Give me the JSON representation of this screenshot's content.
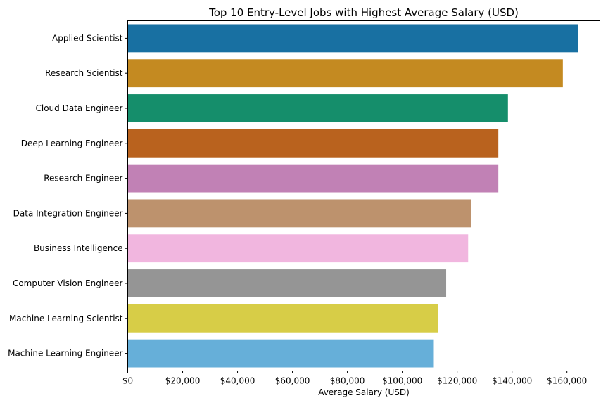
{
  "chart_data": {
    "type": "bar",
    "orientation": "horizontal",
    "title": "Top 10 Entry-Level Jobs with Highest Average Salary (USD)",
    "xlabel": "Average Salary (USD)",
    "ylabel": "",
    "xlim": [
      0,
      172000
    ],
    "xticks": [
      0,
      20000,
      40000,
      60000,
      80000,
      100000,
      120000,
      140000,
      160000
    ],
    "xtick_labels": [
      "$0",
      "$20,000",
      "$40,000",
      "$60,000",
      "$80,000",
      "$100,000",
      "$120,000",
      "$140,000",
      "$160,000"
    ],
    "grid": false,
    "categories": [
      "Applied Scientist",
      "Research Scientist",
      "Cloud Data Engineer",
      "Deep Learning Engineer",
      "Research Engineer",
      "Data Integration Engineer",
      "Business Intelligence",
      "Computer Vision Engineer",
      "Machine Learning Scientist",
      "Machine Learning Engineer"
    ],
    "values": [
      164000,
      158500,
      138500,
      135000,
      135000,
      125000,
      124000,
      116000,
      113000,
      111500
    ],
    "colors": [
      "#1870a2",
      "#c48a21",
      "#158e6b",
      "#b9621e",
      "#c181b5",
      "#bd926d",
      "#f1b6df",
      "#959595",
      "#d7cd47",
      "#66afd9"
    ]
  }
}
